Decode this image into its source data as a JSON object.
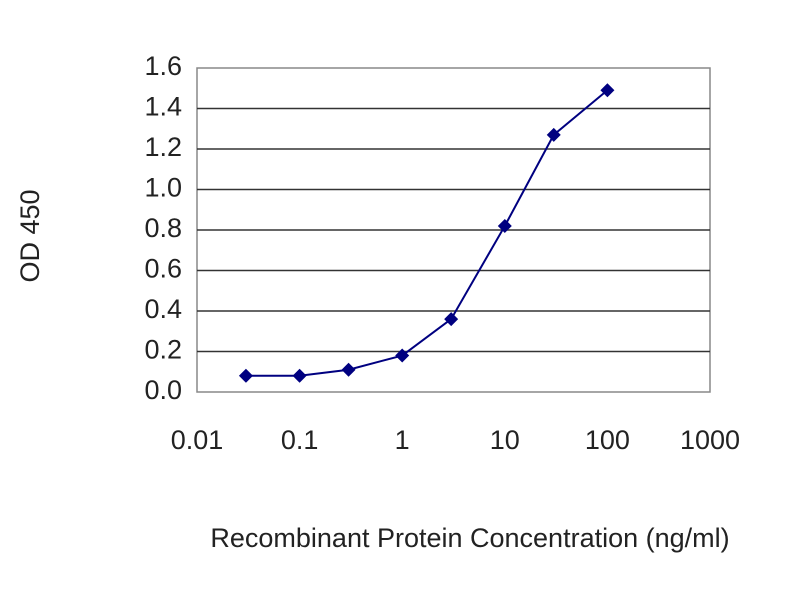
{
  "chart_data": {
    "type": "line",
    "xlabel": "Recombinant Protein Concentration (ng/ml)",
    "ylabel": "OD 450",
    "x": [
      0.03,
      0.1,
      0.3,
      1,
      3,
      10,
      30,
      100
    ],
    "values": [
      0.08,
      0.08,
      0.11,
      0.18,
      0.36,
      0.82,
      1.27,
      1.49
    ],
    "color": "#000080",
    "marker": "diamond",
    "xscale": "log",
    "xlim": [
      0.01,
      1000
    ],
    "xticks": [
      0.01,
      0.1,
      1,
      10,
      100,
      1000
    ],
    "ylim": [
      0,
      1.6
    ],
    "yticks": [
      {
        "value": 0,
        "label": "0.0"
      },
      0.2,
      0.4,
      0.6,
      0.8,
      {
        "value": 1,
        "label": "1.0"
      },
      1.2,
      1.4,
      1.6
    ],
    "grid": true
  }
}
